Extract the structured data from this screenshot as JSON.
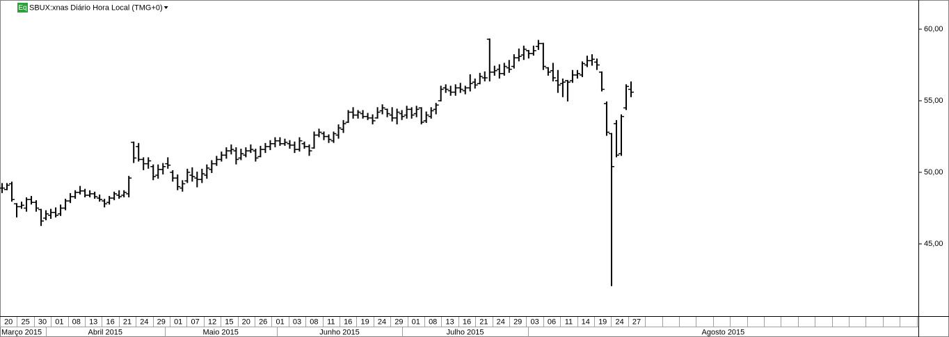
{
  "chart_data": {
    "type": "ohlc",
    "badge": "Eq",
    "title": "SBUX:xnas Diário Hora Local (TMG+0)",
    "ylim": [
      40,
      62
    ],
    "yticks": [
      {
        "value": 45,
        "label": "45,00"
      },
      {
        "value": 50,
        "label": "50,00"
      },
      {
        "value": 55,
        "label": "55,00"
      },
      {
        "value": 60,
        "label": "60,00"
      }
    ],
    "color": "#000000",
    "day_labels": [
      "20",
      "25",
      "30",
      "01",
      "08",
      "13",
      "16",
      "21",
      "24",
      "29",
      "01",
      "07",
      "12",
      "15",
      "20",
      "26",
      "01",
      "03",
      "08",
      "11",
      "16",
      "19",
      "24",
      "29",
      "01",
      "08",
      "13",
      "16",
      "21",
      "24",
      "29",
      "03",
      "06",
      "11",
      "14",
      "19",
      "24",
      "27"
    ],
    "month_labels": [
      "Março 2015",
      "Abril 2015",
      "Maio 2015",
      "Junho 2015",
      "Julho 2015",
      "Agosto 2015"
    ],
    "ohlc": [
      [
        48.9,
        49.2,
        48.6,
        48.9
      ],
      [
        48.8,
        49.2,
        48.8,
        49.1
      ],
      [
        49.2,
        49.3,
        48.0,
        48.1
      ],
      [
        47.8,
        47.8,
        46.9,
        47.6
      ],
      [
        47.6,
        47.9,
        47.5,
        47.7
      ],
      [
        47.5,
        48.2,
        47.3,
        48.1
      ],
      [
        48.1,
        48.3,
        47.8,
        47.9
      ],
      [
        47.9,
        48.0,
        47.3,
        47.5
      ],
      [
        47.4,
        47.4,
        46.3,
        46.6
      ],
      [
        46.8,
        47.3,
        46.7,
        47.1
      ],
      [
        47.0,
        47.4,
        46.8,
        47.2
      ],
      [
        47.2,
        47.5,
        46.9,
        47.0
      ],
      [
        47.1,
        47.7,
        47.0,
        47.5
      ],
      [
        47.5,
        48.1,
        47.4,
        48.0
      ],
      [
        48.0,
        48.5,
        47.9,
        48.3
      ],
      [
        48.3,
        48.7,
        48.2,
        48.6
      ],
      [
        48.6,
        49.0,
        48.5,
        48.7
      ],
      [
        48.7,
        48.8,
        48.3,
        48.4
      ],
      [
        48.4,
        48.7,
        48.3,
        48.5
      ],
      [
        48.5,
        48.6,
        48.2,
        48.3
      ],
      [
        48.2,
        48.4,
        48.0,
        48.1
      ],
      [
        48.0,
        48.1,
        47.6,
        47.8
      ],
      [
        47.9,
        48.3,
        47.8,
        48.2
      ],
      [
        48.2,
        48.6,
        48.1,
        48.5
      ],
      [
        48.4,
        48.7,
        48.2,
        48.3
      ],
      [
        48.4,
        48.7,
        48.3,
        48.6
      ],
      [
        48.5,
        49.7,
        48.3,
        49.6
      ],
      [
        52.1,
        52.1,
        50.7,
        51.0
      ],
      [
        51.8,
        52.0,
        50.8,
        50.9
      ],
      [
        50.9,
        51.0,
        50.2,
        50.6
      ],
      [
        50.6,
        51.0,
        50.3,
        50.8
      ],
      [
        50.4,
        50.5,
        49.5,
        49.7
      ],
      [
        49.8,
        50.5,
        49.6,
        50.2
      ],
      [
        50.2,
        50.6,
        49.9,
        50.4
      ],
      [
        50.6,
        51.0,
        50.3,
        50.5
      ],
      [
        50.0,
        50.1,
        49.4,
        49.6
      ],
      [
        49.6,
        49.8,
        48.8,
        49.0
      ],
      [
        48.9,
        49.4,
        48.7,
        49.2
      ],
      [
        49.4,
        50.2,
        49.3,
        50.0
      ],
      [
        49.8,
        50.3,
        49.4,
        49.7
      ],
      [
        49.6,
        50.0,
        49.0,
        49.5
      ],
      [
        49.5,
        50.2,
        49.3,
        49.9
      ],
      [
        49.8,
        50.5,
        49.6,
        50.3
      ],
      [
        50.2,
        50.8,
        50.0,
        50.6
      ],
      [
        50.6,
        51.1,
        50.5,
        50.9
      ],
      [
        50.9,
        51.4,
        50.8,
        51.2
      ],
      [
        51.2,
        51.7,
        51.0,
        51.5
      ],
      [
        51.5,
        51.9,
        51.3,
        51.6
      ],
      [
        51.5,
        51.7,
        50.6,
        50.9
      ],
      [
        51.0,
        51.6,
        50.9,
        51.3
      ],
      [
        51.2,
        51.7,
        51.1,
        51.5
      ],
      [
        51.5,
        51.9,
        51.4,
        51.6
      ],
      [
        51.5,
        51.6,
        50.8,
        51.0
      ],
      [
        51.1,
        51.8,
        51.1,
        51.6
      ],
      [
        51.6,
        52.0,
        51.4,
        51.8
      ],
      [
        51.8,
        52.2,
        51.6,
        52.0
      ],
      [
        52.0,
        52.4,
        51.8,
        52.2
      ],
      [
        52.2,
        52.4,
        51.9,
        52.0
      ],
      [
        52.0,
        52.3,
        51.9,
        52.1
      ],
      [
        52.0,
        52.2,
        51.7,
        51.9
      ],
      [
        51.9,
        52.1,
        51.4,
        51.6
      ],
      [
        51.6,
        52.4,
        51.5,
        52.2
      ],
      [
        52.0,
        52.1,
        51.7,
        51.8
      ],
      [
        51.8,
        51.9,
        51.2,
        51.5
      ],
      [
        51.7,
        52.8,
        51.7,
        52.6
      ],
      [
        52.6,
        53.0,
        52.5,
        52.8
      ],
      [
        52.7,
        52.8,
        52.3,
        52.5
      ],
      [
        52.5,
        52.6,
        52.1,
        52.3
      ],
      [
        52.2,
        52.8,
        52.1,
        52.7
      ],
      [
        52.6,
        53.3,
        52.4,
        53.1
      ],
      [
        53.0,
        53.6,
        52.8,
        53.4
      ],
      [
        53.5,
        54.3,
        53.5,
        54.2
      ],
      [
        54.2,
        54.5,
        53.8,
        54.0
      ],
      [
        54.0,
        54.3,
        53.8,
        54.2
      ],
      [
        54.1,
        54.3,
        53.8,
        53.9
      ],
      [
        53.9,
        54.1,
        53.7,
        53.8
      ],
      [
        53.8,
        54.0,
        53.4,
        53.6
      ],
      [
        53.8,
        54.5,
        53.8,
        54.2
      ],
      [
        54.3,
        54.7,
        54.1,
        54.5
      ],
      [
        54.4,
        54.4,
        53.9,
        54.1
      ],
      [
        54.0,
        54.5,
        53.6,
        53.8
      ],
      [
        53.8,
        54.4,
        53.4,
        54.2
      ],
      [
        54.1,
        54.3,
        53.7,
        53.9
      ],
      [
        54.0,
        54.6,
        53.8,
        54.4
      ],
      [
        54.4,
        54.5,
        53.8,
        54.0
      ],
      [
        54.1,
        54.6,
        53.9,
        54.4
      ],
      [
        54.5,
        54.5,
        53.4,
        53.5
      ],
      [
        53.6,
        54.2,
        53.5,
        54.0
      ],
      [
        53.9,
        54.5,
        53.8,
        54.3
      ],
      [
        54.4,
        54.8,
        54.1,
        54.7
      ],
      [
        55.0,
        56.0,
        55.0,
        55.8
      ],
      [
        55.9,
        56.1,
        55.6,
        55.8
      ],
      [
        55.7,
        56.0,
        55.4,
        55.6
      ],
      [
        55.6,
        56.1,
        55.4,
        55.9
      ],
      [
        55.9,
        56.2,
        55.6,
        55.8
      ],
      [
        55.7,
        56.0,
        55.5,
        55.9
      ],
      [
        55.9,
        56.8,
        55.7,
        56.2
      ],
      [
        56.3,
        56.5,
        55.9,
        56.1
      ],
      [
        56.2,
        56.9,
        56.2,
        56.7
      ],
      [
        56.6,
        57.0,
        56.4,
        56.6
      ],
      [
        59.3,
        59.3,
        56.4,
        57.0
      ],
      [
        57.0,
        57.4,
        56.8,
        57.1
      ],
      [
        57.2,
        57.5,
        56.6,
        56.9
      ],
      [
        56.9,
        57.6,
        56.8,
        57.4
      ],
      [
        57.3,
        57.8,
        57.0,
        57.2
      ],
      [
        57.4,
        58.2,
        57.3,
        58.0
      ],
      [
        58.0,
        58.6,
        57.8,
        58.1
      ],
      [
        58.2,
        58.8,
        57.9,
        58.6
      ],
      [
        58.5,
        58.5,
        58.0,
        58.3
      ],
      [
        58.3,
        58.8,
        58.2,
        58.5
      ],
      [
        58.8,
        59.2,
        58.6,
        59.0
      ],
      [
        59.0,
        59.0,
        57.2,
        57.4
      ],
      [
        57.3,
        57.3,
        56.8,
        57.0
      ],
      [
        57.1,
        57.6,
        56.4,
        56.6
      ],
      [
        56.4,
        57.1,
        55.6,
        56.1
      ],
      [
        56.2,
        56.5,
        55.3,
        56.3
      ],
      [
        56.4,
        56.4,
        55.0,
        56.3
      ],
      [
        56.4,
        57.1,
        56.3,
        56.8
      ],
      [
        56.8,
        57.1,
        56.6,
        56.9
      ],
      [
        56.8,
        57.7,
        56.7,
        57.6
      ],
      [
        57.5,
        58.1,
        57.4,
        57.8
      ],
      [
        57.8,
        58.2,
        57.5,
        57.9
      ],
      [
        57.7,
        57.9,
        57.2,
        57.5
      ],
      [
        57.0,
        57.0,
        55.7,
        55.8
      ],
      [
        54.8,
        54.9,
        52.6,
        52.8
      ],
      [
        52.7,
        52.7,
        42.1,
        50.4
      ],
      [
        53.4,
        53.6,
        51.1,
        51.2
      ],
      [
        51.3,
        54.0,
        51.2,
        53.9
      ],
      [
        54.5,
        56.1,
        54.4,
        56.0
      ],
      [
        55.8,
        56.3,
        55.3,
        55.6
      ]
    ]
  }
}
